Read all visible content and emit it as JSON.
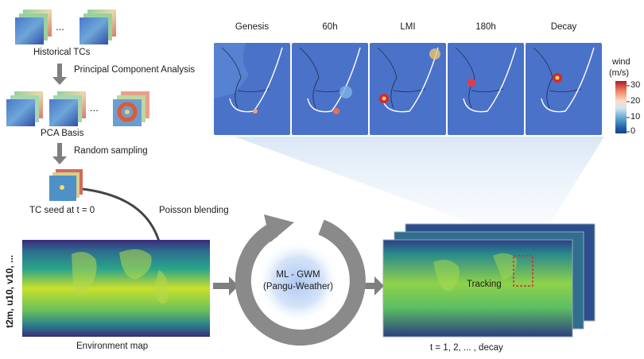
{
  "pipeline": {
    "historical_tcs": "Historical TCs",
    "pca_step": "Principal Component Analysis",
    "pca_basis": "PCA Basis",
    "sampling_step": "Random sampling",
    "tc_seed": "TC seed at t = 0",
    "blending_step": "Poisson blending",
    "ellipsis": "...",
    "ellipsis2": "..."
  },
  "env_map": {
    "caption": "Environment map",
    "vars_label": "t2m, u10, v10, ..."
  },
  "model": {
    "line1": "ML - GWM",
    "line2": "(Pangu-Weather)"
  },
  "output": {
    "tracking": "Tracking",
    "caption": "t = 1, 2, ... , decay"
  },
  "stages": [
    "Genesis",
    "60h",
    "LMI",
    "180h",
    "Decay"
  ],
  "colorbar": {
    "title1": "wind",
    "title2": "(m/s)",
    "ticks": [
      "30",
      "20",
      "10",
      "0"
    ]
  },
  "colors": {
    "arrow": "#7f7f7f",
    "tracking_box": "#d0312d",
    "wind_high": "#b2182b",
    "wind_low": "#2166ac"
  }
}
